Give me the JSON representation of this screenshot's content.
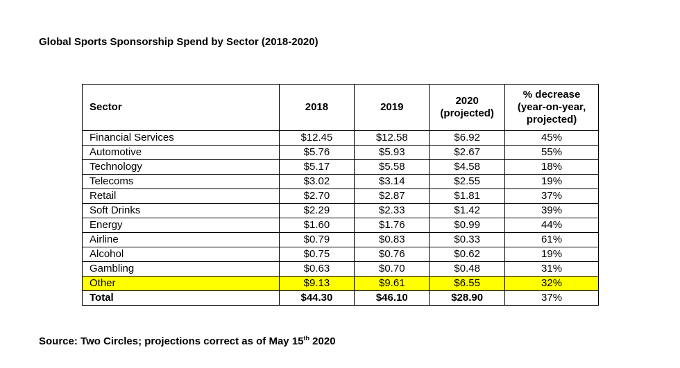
{
  "title": "Global Sports Sponsorship Spend by Sector (2018-2020)",
  "table": {
    "headers": {
      "sector": "Sector",
      "y2018": "2018",
      "y2019": "2019",
      "y2020_line1": "2020",
      "y2020_line2": "(projected)",
      "pct_line1": "% decrease",
      "pct_line2": "(year-on-year,",
      "pct_line3": "projected)"
    },
    "rows": [
      {
        "sector": "Financial Services",
        "y2018": "$12.45",
        "y2019": "$12.58",
        "y2020": "$6.92",
        "pct": "45%"
      },
      {
        "sector": "Automotive",
        "y2018": "$5.76",
        "y2019": "$5.93",
        "y2020": "$2.67",
        "pct": "55%"
      },
      {
        "sector": "Technology",
        "y2018": "$5.17",
        "y2019": "$5.58",
        "y2020": "$4.58",
        "pct": "18%"
      },
      {
        "sector": "Telecoms",
        "y2018": "$3.02",
        "y2019": "$3.14",
        "y2020": "$2.55",
        "pct": "19%"
      },
      {
        "sector": "Retail",
        "y2018": "$2.70",
        "y2019": "$2.87",
        "y2020": "$1.81",
        "pct": "37%"
      },
      {
        "sector": "Soft Drinks",
        "y2018": "$2.29",
        "y2019": "$2.33",
        "y2020": "$1.42",
        "pct": "39%"
      },
      {
        "sector": "Energy",
        "y2018": "$1.60",
        "y2019": "$1.76",
        "y2020": "$0.99",
        "pct": "44%"
      },
      {
        "sector": "Airline",
        "y2018": "$0.79",
        "y2019": "$0.83",
        "y2020": "$0.33",
        "pct": "61%"
      },
      {
        "sector": "Alcohol",
        "y2018": "$0.75",
        "y2019": "$0.76",
        "y2020": "$0.62",
        "pct": "19%"
      },
      {
        "sector": "Gambling",
        "y2018": "$0.63",
        "y2019": "$0.70",
        "y2020": "$0.48",
        "pct": "31%"
      },
      {
        "sector": "Other",
        "y2018": "$9.13",
        "y2019": "$9.61",
        "y2020": "$6.55",
        "pct": "32%"
      }
    ],
    "total": {
      "sector": "Total",
      "y2018": "$44.30",
      "y2019": "$46.10",
      "y2020": "$28.90",
      "pct": "37%"
    },
    "highlight_color": "#ffff00"
  },
  "source": {
    "prefix": "Source: Two Circles; projections correct as of May 15",
    "superscript": "th",
    "suffix": " 2020"
  }
}
